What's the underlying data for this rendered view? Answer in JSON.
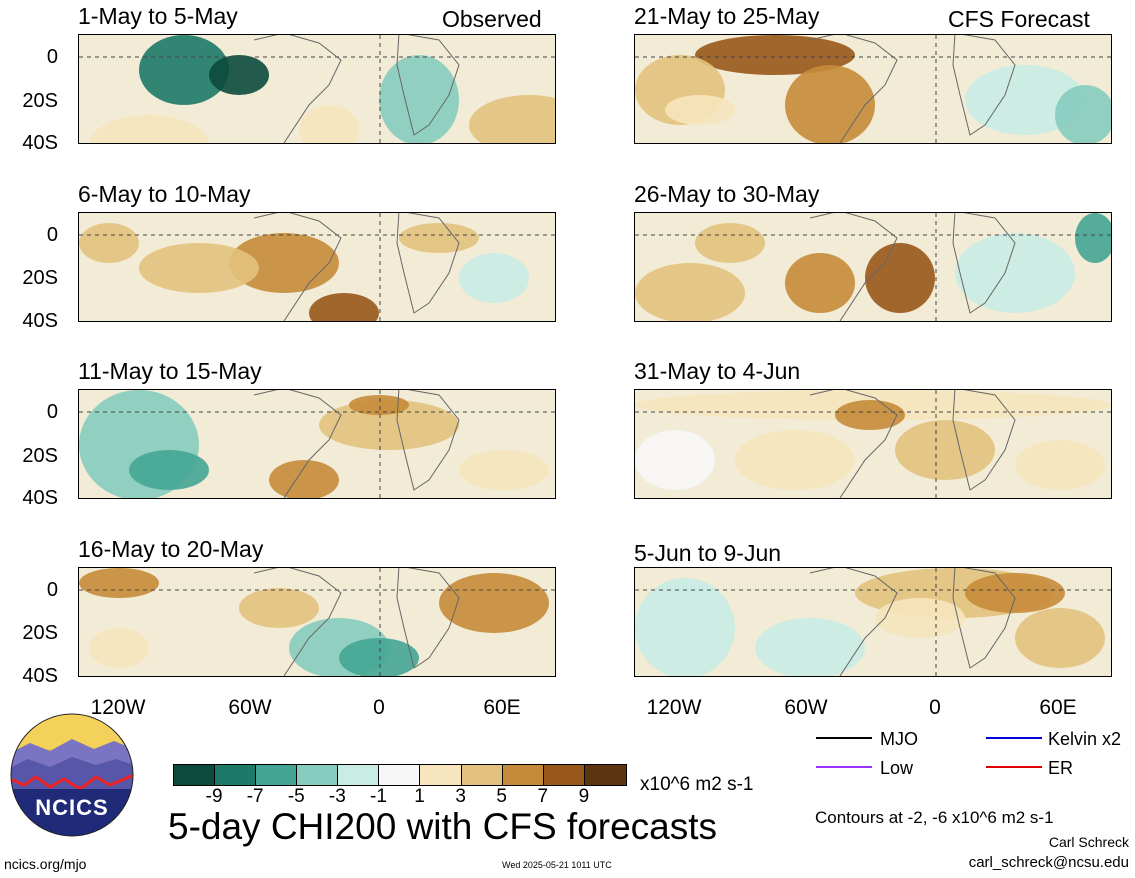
{
  "header": {
    "left_label": "Observed",
    "right_label": "CFS Forecast"
  },
  "panels_left": [
    {
      "title": "1-May to 5-May"
    },
    {
      "title": "6-May to 10-May"
    },
    {
      "title": "11-May to 15-May"
    },
    {
      "title": "16-May to 20-May"
    }
  ],
  "panels_right": [
    {
      "title": "21-May to 25-May"
    },
    {
      "title": "26-May to 30-May"
    },
    {
      "title": "31-May to 4-Jun"
    },
    {
      "title": "5-Jun to 9-Jun"
    }
  ],
  "y_ticks": [
    "0",
    "20S",
    "40S"
  ],
  "x_ticks": [
    "120W",
    "60W",
    "0",
    "60E"
  ],
  "colorbar": {
    "ticks": [
      "-9",
      "-7",
      "-5",
      "-3",
      "-1",
      "1",
      "3",
      "5",
      "7",
      "9"
    ],
    "units": "x10^6 m2 s-1",
    "colors": [
      "#0b4a3c",
      "#1e7a68",
      "#45a594",
      "#86cdbf",
      "#c9ece4",
      "#f7f7f7",
      "#f6e5bd",
      "#e2c27d",
      "#c58b3a",
      "#98581a",
      "#5c3510"
    ]
  },
  "main_title": "5-day CHI200 with CFS forecasts",
  "logo": {
    "text": "NCICS"
  },
  "legend": [
    {
      "label": "MJO",
      "color": "#000000"
    },
    {
      "label": "Kelvin x2",
      "color": "#0000dd"
    },
    {
      "label": "Low",
      "color": "#9b30ff"
    },
    {
      "label": "ER",
      "color": "#dd0000"
    }
  ],
  "contour_note": "Contours at -2, -6 x10^6 m2 s-1",
  "author": "Carl Schreck",
  "email": "carl_schreck@ncsu.edu",
  "website": "ncics.org/mjo",
  "timestamp": "Wed 2025-05-21 1011 UTC"
}
